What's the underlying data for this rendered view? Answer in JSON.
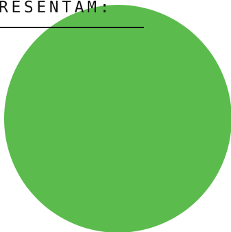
{
  "heading": {
    "text": "RESENTAM:"
  },
  "colors": {
    "circle_fill": "#5bbb4d",
    "text": "#111111",
    "background": "#ffffff"
  }
}
